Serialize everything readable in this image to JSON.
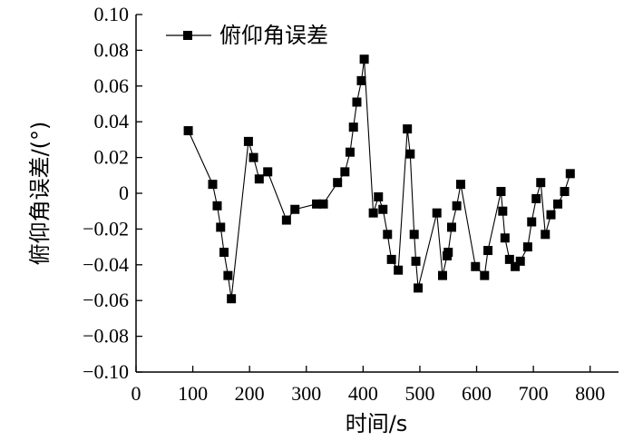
{
  "chart_data": {
    "type": "line",
    "title": "",
    "xlabel": "时间/s",
    "ylabel": "俯仰角误差/(°)",
    "xlim": [
      0,
      850
    ],
    "ylim": [
      -0.1,
      0.1
    ],
    "x_ticks": [
      0,
      100,
      200,
      300,
      400,
      500,
      600,
      700,
      800
    ],
    "x_tick_labels": [
      "0",
      "100",
      "200",
      "300",
      "400",
      "500",
      "600",
      "700",
      "800"
    ],
    "y_ticks": [
      0.1,
      0.08,
      0.06,
      0.04,
      0.02,
      0,
      -0.02,
      -0.04,
      -0.06,
      -0.08,
      -0.1
    ],
    "y_tick_labels": [
      "0.10",
      "0.08",
      "0.06",
      "0.04",
      "0.02",
      "0",
      "−0.02",
      "−0.04",
      "−0.06",
      "−0.08",
      "−0.10"
    ],
    "grid": false,
    "legend_position": "top-left",
    "line_color": "#000000",
    "marker": "square",
    "series": [
      {
        "name": "俯仰角误差",
        "points": [
          [
            92,
            0.035
          ],
          [
            135,
            0.005
          ],
          [
            143,
            -0.007
          ],
          [
            149,
            -0.019
          ],
          [
            155,
            -0.033
          ],
          [
            162,
            -0.046
          ],
          [
            168,
            -0.059
          ],
          [
            198,
            0.029
          ],
          [
            207,
            0.02
          ],
          [
            217,
            0.008
          ],
          [
            232,
            0.012
          ],
          [
            265,
            -0.015
          ],
          [
            280,
            -0.009
          ],
          [
            318,
            -0.006
          ],
          [
            330,
            -0.006
          ],
          [
            355,
            0.006
          ],
          [
            368,
            0.012
          ],
          [
            377,
            0.023
          ],
          [
            383,
            0.037
          ],
          [
            389,
            0.051
          ],
          [
            397,
            0.063
          ],
          [
            402,
            0.075
          ],
          [
            418,
            -0.011
          ],
          [
            427,
            -0.002
          ],
          [
            435,
            -0.009
          ],
          [
            443,
            -0.023
          ],
          [
            450,
            -0.037
          ],
          [
            462,
            -0.043
          ],
          [
            478,
            0.036
          ],
          [
            483,
            0.022
          ],
          [
            490,
            -0.023
          ],
          [
            493,
            -0.038
          ],
          [
            497,
            -0.053
          ],
          [
            530,
            -0.011
          ],
          [
            540,
            -0.046
          ],
          [
            548,
            -0.035
          ],
          [
            550,
            -0.033
          ],
          [
            556,
            -0.019
          ],
          [
            565,
            -0.007
          ],
          [
            572,
            0.005
          ],
          [
            598,
            -0.041
          ],
          [
            614,
            -0.046
          ],
          [
            620,
            -0.032
          ],
          [
            643,
            0.001
          ],
          [
            646,
            -0.01
          ],
          [
            650,
            -0.025
          ],
          [
            658,
            -0.037
          ],
          [
            668,
            -0.041
          ],
          [
            677,
            -0.038
          ],
          [
            690,
            -0.03
          ],
          [
            697,
            -0.016
          ],
          [
            705,
            -0.003
          ],
          [
            713,
            0.006
          ],
          [
            721,
            -0.023
          ],
          [
            731,
            -0.012
          ],
          [
            743,
            -0.006
          ],
          [
            755,
            0.001
          ],
          [
            765,
            0.011
          ]
        ]
      }
    ]
  }
}
